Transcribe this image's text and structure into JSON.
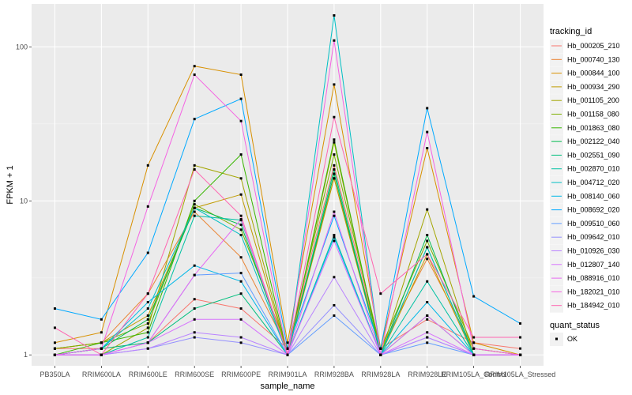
{
  "chart_data": {
    "type": "line",
    "xlabel": "sample_name",
    "ylabel": "FPKM + 1",
    "y_scale": "log10",
    "ylim": [
      0.85,
      190
    ],
    "y_ticks": [
      {
        "value": 1,
        "label": "1"
      },
      {
        "value": 10,
        "label": "10"
      },
      {
        "value": 100,
        "label": "100"
      }
    ],
    "grid": true,
    "legend_position": "right",
    "categories": [
      "PB350LA",
      "RRIM600LA",
      "RRIM600LE",
      "RRIM600SE",
      "RRIM600PE",
      "RRIM901LA",
      "RRIM928BA",
      "RRIM928LA",
      "RRIM928LE",
      "RRIM105LA_Control",
      "RRIM105LA_Stressed"
    ],
    "legend_title": "tracking_id",
    "series": [
      {
        "name": "Hb_000205_210",
        "color": "#F8766D",
        "values": [
          1.1,
          1.1,
          1.2,
          2.3,
          2.0,
          1.1,
          17,
          1.1,
          1.7,
          1.2,
          1.1
        ]
      },
      {
        "name": "Hb_000740_130",
        "color": "#EA8331",
        "values": [
          1.1,
          1.2,
          2.5,
          8.5,
          4.3,
          1.1,
          14,
          1.1,
          4.2,
          1.1,
          1.0
        ]
      },
      {
        "name": "Hb_000844_100",
        "color": "#D89000",
        "values": [
          1.2,
          1.4,
          17,
          75,
          66,
          1.2,
          57,
          1.1,
          22,
          1.2,
          1.0
        ]
      },
      {
        "name": "Hb_000934_290",
        "color": "#C09B00",
        "values": [
          1.1,
          1.2,
          1.8,
          9.0,
          11,
          1.0,
          14,
          1.0,
          4.5,
          1.0,
          1.0
        ]
      },
      {
        "name": "Hb_001105_200",
        "color": "#A3A500",
        "values": [
          1.0,
          1.0,
          1.5,
          17,
          14,
          1.0,
          24,
          1.0,
          8.8,
          1.0,
          1.0
        ]
      },
      {
        "name": "Hb_001158_080",
        "color": "#7CAE00",
        "values": [
          1.1,
          1.2,
          1.6,
          9.5,
          6.5,
          1.1,
          20,
          1.1,
          5.5,
          1.1,
          1.0
        ]
      },
      {
        "name": "Hb_001863_080",
        "color": "#39B600",
        "values": [
          1.0,
          1.2,
          1.4,
          10,
          20,
          1.0,
          25,
          1.0,
          5.0,
          1.0,
          1.0
        ]
      },
      {
        "name": "Hb_002122_040",
        "color": "#00BB4E",
        "values": [
          1.0,
          1.1,
          1.7,
          9.0,
          7.0,
          1.0,
          15,
          1.0,
          6.0,
          1.0,
          1.0
        ]
      },
      {
        "name": "Hb_002551_090",
        "color": "#00BF7D",
        "values": [
          1.0,
          1.1,
          1.2,
          2.0,
          2.5,
          1.0,
          16,
          1.0,
          1.8,
          1.0,
          1.0
        ]
      },
      {
        "name": "Hb_002870_010",
        "color": "#00C1A3",
        "values": [
          1.0,
          1.0,
          1.3,
          8.0,
          7.5,
          1.0,
          6.0,
          1.0,
          3.0,
          1.0,
          1.0
        ]
      },
      {
        "name": "Hb_004712_020",
        "color": "#00BFC4",
        "values": [
          1.0,
          1.1,
          2.0,
          9.0,
          6.0,
          1.0,
          160,
          1.0,
          5.0,
          1.0,
          1.0
        ]
      },
      {
        "name": "Hb_008140_060",
        "color": "#00B8E7",
        "values": [
          1.0,
          1.1,
          2.2,
          3.8,
          3.0,
          1.0,
          5.8,
          1.0,
          2.2,
          1.0,
          1.0
        ]
      },
      {
        "name": "Hb_008692_020",
        "color": "#00A9FF",
        "values": [
          2.0,
          1.7,
          4.6,
          34,
          46,
          1.1,
          8.0,
          1.1,
          40,
          2.4,
          1.6
        ]
      },
      {
        "name": "Hb_009510_060",
        "color": "#619CFF",
        "values": [
          1.0,
          1.0,
          1.2,
          3.3,
          3.4,
          1.0,
          1.8,
          1.0,
          1.2,
          1.0,
          1.0
        ]
      },
      {
        "name": "Hb_009642_010",
        "color": "#9590FF",
        "values": [
          1.0,
          1.0,
          1.1,
          1.3,
          1.2,
          1.0,
          2.1,
          1.0,
          1.3,
          1.0,
          1.0
        ]
      },
      {
        "name": "Hb_010926_030",
        "color": "#B983FF",
        "values": [
          1.0,
          1.0,
          1.1,
          1.4,
          1.3,
          1.0,
          3.2,
          1.0,
          1.3,
          1.0,
          1.0
        ]
      },
      {
        "name": "Hb_012807_140",
        "color": "#D774FD",
        "values": [
          1.0,
          1.0,
          1.2,
          1.7,
          1.7,
          1.0,
          5.5,
          1.0,
          1.4,
          1.0,
          1.0
        ]
      },
      {
        "name": "Hb_088916_010",
        "color": "#E76BF3",
        "values": [
          1.0,
          1.0,
          1.2,
          3.3,
          7.6,
          1.0,
          8.5,
          1.0,
          1.8,
          1.0,
          1.0
        ]
      },
      {
        "name": "Hb_182021_010",
        "color": "#F564E3",
        "values": [
          1.0,
          1.1,
          9.2,
          66,
          33,
          1.0,
          110,
          1.0,
          28,
          1.1,
          1.0
        ]
      },
      {
        "name": "Hb_184942_010",
        "color": "#FF64B0",
        "values": [
          1.5,
          1.0,
          2.5,
          16,
          8.0,
          1.0,
          35,
          2.5,
          4.5,
          1.3,
          1.3
        ]
      }
    ],
    "shape_legend": {
      "title": "quant_status",
      "items": [
        "OK"
      ]
    }
  }
}
